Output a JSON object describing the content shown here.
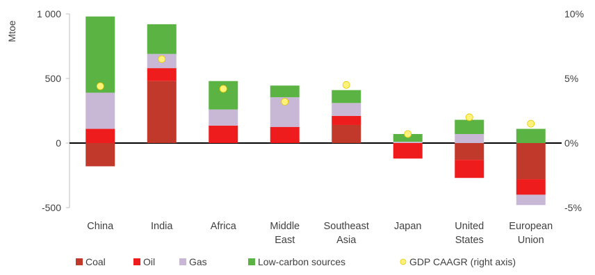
{
  "chart_data": {
    "type": "bar",
    "stacked": true,
    "ylabel": "Mtoe",
    "y2label": "",
    "ylim": [
      -500,
      1000
    ],
    "y_ticks": [
      "1 000",
      "500",
      "0",
      "-500"
    ],
    "y2lim": [
      -5,
      10
    ],
    "y2_ticks": [
      "10%",
      "5%",
      "0%",
      "-5%"
    ],
    "categories": [
      [
        "China"
      ],
      [
        "India"
      ],
      [
        "Africa"
      ],
      [
        "Middle",
        "East"
      ],
      [
        "Southeast",
        "Asia"
      ],
      [
        "Japan"
      ],
      [
        "United",
        "States"
      ],
      [
        "European",
        "Union"
      ]
    ],
    "series": [
      {
        "name": "Coal",
        "color": "#c0392b",
        "values": [
          -180,
          480,
          0,
          0,
          140,
          0,
          -130,
          -280
        ]
      },
      {
        "name": "Oil",
        "color": "#ee1c1c",
        "values": [
          110,
          100,
          135,
          125,
          70,
          -120,
          -140,
          -120
        ]
      },
      {
        "name": "Gas",
        "color": "#c9b7d6",
        "values": [
          280,
          110,
          125,
          230,
          100,
          10,
          70,
          -80
        ]
      },
      {
        "name": "Low-carbon sources",
        "color": "#5bb344",
        "values": [
          590,
          230,
          220,
          90,
          100,
          60,
          110,
          110
        ]
      }
    ],
    "gdp_series": {
      "name": "GDP CAAGR (right axis)",
      "color": "#fff27a",
      "values": [
        4.4,
        6.5,
        4.2,
        3.2,
        4.5,
        0.7,
        2.0,
        1.5
      ]
    },
    "grid": false,
    "legend": "bottom"
  }
}
